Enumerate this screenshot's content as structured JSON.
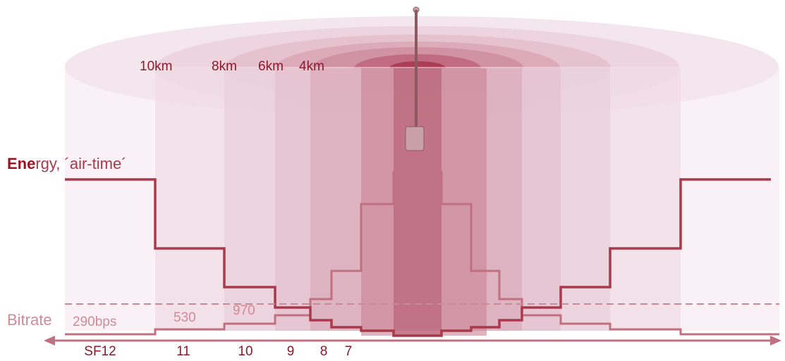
{
  "ranges": [
    "10km",
    "8km",
    "6km",
    "4km"
  ],
  "energy_label": {
    "bold": "Ene",
    "rest": "rgy, ´air-time´"
  },
  "bitrate_label": "Bitrate",
  "bitrates": [
    "290bps",
    "530",
    "970"
  ],
  "spreading_factors": [
    "SF12",
    "11",
    "10",
    "9",
    "8",
    "7"
  ]
}
